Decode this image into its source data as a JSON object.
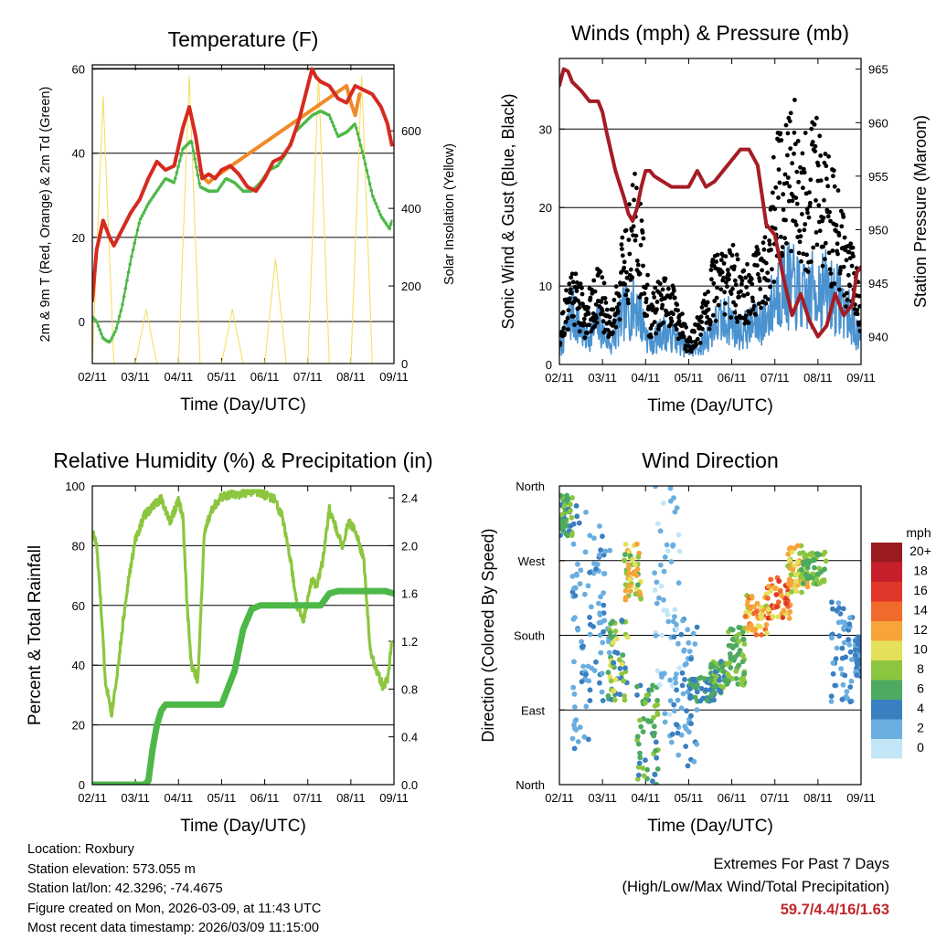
{
  "colors": {
    "temp_red": "#d62a20",
    "temp_orange": "#f08a28",
    "dewpoint_green": "#4db848",
    "insolation_yellow": "#f5dc5a",
    "pressure_maroon": "#a51c24",
    "wind_blue": "#4a92d0",
    "gust_black": "#000000",
    "rh_lightgreen": "#8cc63f",
    "precip_green": "#4db848",
    "extremes_red": "#c1272d"
  },
  "chart_data": [
    {
      "id": "temperature",
      "type": "line",
      "title": "Temperature (F)",
      "xlabel": "Time (Day/UTC)",
      "ylabel": "2m & 9m T (Red, Orange) & 2m Td (Green)",
      "y2label": "Solar Insolation (Yellow)",
      "x_ticks": [
        "02/11",
        "03/11",
        "04/11",
        "05/11",
        "06/11",
        "07/11",
        "08/11",
        "09/11"
      ],
      "xlim": [
        0,
        7
      ],
      "ylim": [
        -10,
        61
      ],
      "y_ticks": [
        0,
        20,
        40,
        60
      ],
      "y2lim": [
        0,
        770
      ],
      "y2_ticks": [
        0,
        200,
        400,
        600
      ],
      "grid_y": [
        0,
        20,
        40,
        60
      ],
      "series": [
        {
          "name": "2m T",
          "color": "temp_red",
          "x": [
            0,
            0.1,
            0.25,
            0.4,
            0.5,
            0.7,
            0.9,
            1.1,
            1.3,
            1.5,
            1.7,
            1.9,
            2.1,
            2.25,
            2.4,
            2.55,
            2.7,
            2.85,
            3.0,
            3.2,
            3.4,
            3.6,
            3.8,
            4.0,
            4.2,
            4.4,
            4.6,
            4.8,
            5.0,
            5.1,
            5.2,
            5.3,
            5.5,
            5.7,
            5.9,
            6.1,
            6.3,
            6.5,
            6.7,
            6.85,
            6.95
          ],
          "values": [
            5,
            17,
            24,
            20,
            18,
            22,
            26,
            29,
            34,
            38,
            36,
            37,
            46,
            51,
            44,
            34,
            35,
            34,
            36,
            37,
            35,
            32,
            31,
            34,
            38,
            39,
            42,
            48,
            56,
            60,
            58,
            57,
            56,
            53,
            52,
            56,
            55,
            54,
            51,
            47,
            42
          ]
        },
        {
          "name": "9m T",
          "color": "temp_orange",
          "x": [
            2.5,
            2.6,
            2.7,
            2.8,
            5.9,
            6.0,
            6.1,
            6.2
          ],
          "values": [
            36,
            34,
            33,
            34,
            56,
            52,
            49,
            54
          ]
        },
        {
          "name": "2m Td",
          "color": "dewpoint_green",
          "x": [
            0,
            0.1,
            0.25,
            0.4,
            0.55,
            0.7,
            0.9,
            1.1,
            1.3,
            1.5,
            1.7,
            1.9,
            2.1,
            2.3,
            2.5,
            2.7,
            2.9,
            3.1,
            3.3,
            3.5,
            3.7,
            3.9,
            4.1,
            4.3,
            4.5,
            4.7,
            4.9,
            5.1,
            5.3,
            5.5,
            5.7,
            5.9,
            6.1,
            6.3,
            6.5,
            6.7,
            6.9,
            6.95
          ],
          "values": [
            1,
            0,
            -4,
            -5,
            -2,
            4,
            15,
            24,
            28,
            31,
            34,
            33,
            41,
            43,
            32,
            31,
            31,
            34,
            33,
            31,
            31,
            33,
            36,
            37,
            40,
            45,
            47,
            49,
            50,
            49,
            44,
            45,
            47,
            39,
            30,
            25,
            22,
            24
          ]
        },
        {
          "name": "Solar Insolation",
          "color": "insolation_yellow",
          "axis": "right",
          "x": [
            0,
            0.25,
            0.5,
            0.75,
            1.0,
            1.25,
            1.5,
            1.75,
            2.0,
            2.25,
            2.5,
            2.75,
            3.0,
            3.25,
            3.5,
            3.75,
            4.0,
            4.25,
            4.5,
            4.75,
            5.0,
            5.25,
            5.5,
            5.75,
            6.0,
            6.25,
            6.5,
            6.75,
            7.0
          ],
          "values": [
            0,
            690,
            0,
            0,
            0,
            140,
            0,
            0,
            0,
            740,
            0,
            0,
            0,
            140,
            0,
            0,
            0,
            270,
            0,
            0,
            0,
            740,
            0,
            0,
            0,
            740,
            0,
            0,
            0
          ]
        }
      ]
    },
    {
      "id": "winds",
      "type": "line",
      "title": "Winds (mph) & Pressure (mb)",
      "xlabel": "Time (Day/UTC)",
      "ylabel": "Sonic Wind & Gust (Blue, Black)",
      "y2label": "Station Pressure (Maroon)",
      "x_ticks": [
        "02/11",
        "03/11",
        "04/11",
        "05/11",
        "06/11",
        "07/11",
        "08/11",
        "09/11"
      ],
      "xlim": [
        0,
        7
      ],
      "ylim": [
        0,
        39
      ],
      "y_ticks": [
        0,
        10,
        20,
        30
      ],
      "y2lim": [
        937.4,
        966
      ],
      "y2_ticks": [
        940,
        945,
        950,
        955,
        960,
        965
      ],
      "grid_y": [
        10,
        20,
        30
      ],
      "series": [
        {
          "name": "Station Pressure",
          "color": "pressure_maroon",
          "axis": "right",
          "x": [
            0,
            0.1,
            0.2,
            0.3,
            0.5,
            0.7,
            0.9,
            1.0,
            1.1,
            1.3,
            1.5,
            1.6,
            1.7,
            1.8,
            1.9,
            2.0,
            2.1,
            2.2,
            2.4,
            2.6,
            2.8,
            3.0,
            3.2,
            3.4,
            3.6,
            3.8,
            4.0,
            4.2,
            4.4,
            4.6,
            4.8,
            5.0,
            5.2,
            5.4,
            5.6,
            5.8,
            6.0,
            6.2,
            6.4,
            6.6,
            6.8,
            6.9,
            7.0
          ],
          "values": [
            963.5,
            965,
            964.8,
            963.8,
            963,
            962,
            962,
            961,
            959,
            955.5,
            953,
            951.5,
            950.8,
            952,
            954,
            955.5,
            955.5,
            955,
            954.5,
            954,
            954,
            954,
            955.5,
            954,
            954.5,
            955.5,
            956.5,
            957.5,
            957.5,
            956,
            950.5,
            949.5,
            945.5,
            942,
            944,
            941.5,
            940,
            941,
            944,
            942,
            943,
            946,
            946.5
          ]
        },
        {
          "name": "Sonic Wind",
          "color": "wind_blue",
          "x": [
            0,
            0.3,
            0.6,
            0.9,
            1.2,
            1.5,
            1.8,
            2.1,
            2.4,
            2.7,
            3.0,
            3.3,
            3.6,
            3.9,
            4.2,
            4.5,
            4.8,
            5.1,
            5.4,
            5.7,
            6.0,
            6.3,
            6.6,
            6.9,
            7.0
          ],
          "values": [
            2,
            8,
            4,
            6,
            3,
            8,
            9,
            3,
            5,
            4,
            2,
            3,
            6,
            7,
            5,
            6,
            7,
            12,
            12,
            10,
            12,
            11,
            9,
            5,
            3
          ]
        },
        {
          "name": "Gust",
          "color": "gust_black",
          "x": [
            0,
            0.3,
            0.6,
            0.9,
            1.2,
            1.5,
            1.8,
            2.1,
            2.4,
            2.7,
            3.0,
            3.3,
            3.6,
            3.9,
            4.2,
            4.5,
            4.8,
            5.1,
            5.4,
            5.7,
            6.0,
            6.3,
            6.6,
            6.9,
            7.0
          ],
          "values": [
            4,
            12,
            7,
            11,
            6,
            15,
            22,
            7,
            10,
            8,
            3,
            6,
            12,
            14,
            11,
            12,
            15,
            28,
            30,
            25,
            27,
            22,
            16,
            11,
            6
          ]
        }
      ]
    },
    {
      "id": "humidity",
      "type": "line",
      "title": "Relative Humidity (%) & Precipitation (in)",
      "xlabel": "Time (Day/UTC)",
      "ylabel": "Percent & Total Rainfall",
      "x_ticks": [
        "02/11",
        "03/11",
        "04/11",
        "05/11",
        "06/11",
        "07/11",
        "08/11",
        "09/11"
      ],
      "xlim": [
        0,
        7
      ],
      "ylim": [
        0,
        100
      ],
      "y_ticks": [
        0,
        20,
        40,
        60,
        80,
        100
      ],
      "y2lim": [
        0,
        2.5
      ],
      "y2_ticks": [
        "0.0",
        "0.4",
        "0.8",
        "1.2",
        "1.6",
        "2.0",
        "2.4"
      ],
      "grid_y": [
        20,
        40,
        60,
        80
      ],
      "series": [
        {
          "name": "Relative Humidity",
          "color": "rh_lightgreen",
          "x": [
            0,
            0.1,
            0.2,
            0.3,
            0.45,
            0.6,
            0.8,
            1.0,
            1.2,
            1.4,
            1.6,
            1.8,
            2.0,
            2.1,
            2.2,
            2.3,
            2.45,
            2.6,
            2.8,
            3.0,
            3.2,
            3.4,
            3.6,
            3.8,
            4.0,
            4.2,
            4.4,
            4.6,
            4.75,
            4.9,
            5.0,
            5.1,
            5.2,
            5.35,
            5.5,
            5.65,
            5.8,
            5.95,
            6.1,
            6.3,
            6.45,
            6.6,
            6.75,
            6.85,
            6.95
          ],
          "values": [
            85,
            80,
            60,
            35,
            24,
            40,
            65,
            82,
            90,
            93,
            96,
            88,
            95,
            90,
            60,
            40,
            35,
            85,
            93,
            96,
            97,
            97,
            98,
            98,
            97,
            96,
            90,
            75,
            60,
            55,
            62,
            70,
            66,
            75,
            92,
            86,
            80,
            88,
            85,
            75,
            45,
            38,
            33,
            35,
            48
          ]
        },
        {
          "name": "Total Rainfall",
          "color": "precip_green",
          "axis": "right",
          "x": [
            0,
            1.2,
            1.3,
            1.4,
            1.5,
            1.6,
            1.7,
            1.9,
            2.1,
            2.3,
            2.5,
            2.7,
            3.0,
            3.3,
            3.5,
            3.7,
            3.9,
            4.2,
            4.5,
            4.8,
            5.0,
            5.2,
            5.3,
            5.5,
            5.7,
            5.9,
            6.2,
            6.5,
            6.8,
            7.0
          ],
          "values": [
            0.0,
            0.0,
            0.03,
            0.3,
            0.5,
            0.62,
            0.67,
            0.67,
            0.67,
            0.67,
            0.67,
            0.67,
            0.67,
            0.95,
            1.3,
            1.47,
            1.5,
            1.5,
            1.5,
            1.5,
            1.5,
            1.5,
            1.5,
            1.6,
            1.62,
            1.62,
            1.62,
            1.62,
            1.62,
            1.6
          ]
        }
      ]
    },
    {
      "id": "direction",
      "type": "scatter",
      "title": "Wind Direction",
      "xlabel": "Time (Day/UTC)",
      "ylabel": "Direction (Colored By Speed)",
      "x_ticks": [
        "02/11",
        "03/11",
        "04/11",
        "05/11",
        "06/11",
        "07/11",
        "08/11",
        "09/11"
      ],
      "xlim": [
        0,
        7
      ],
      "ylim": [
        0,
        360
      ],
      "y_ticks": [
        "North",
        "East",
        "South",
        "West",
        "North"
      ],
      "grid_y": [
        90,
        180,
        270
      ],
      "legend": {
        "title": "mph",
        "labels": [
          "20+",
          "18",
          "16",
          "14",
          "12",
          "10",
          "8",
          "6",
          "4",
          "2",
          "0"
        ],
        "colors": [
          "#9a1b20",
          "#c8202a",
          "#e0372a",
          "#f06a2c",
          "#f7a43a",
          "#e5e05a",
          "#8cc63f",
          "#4daa60",
          "#3a7fc0",
          "#6aaee0",
          "#c3e6f7"
        ]
      },
      "clusters": [
        {
          "x": [
            0.0,
            0.3
          ],
          "dir": [
            300,
            350
          ],
          "speed": [
            4,
            8
          ]
        },
        {
          "x": [
            0.3,
            0.7
          ],
          "dir": [
            40,
            340
          ],
          "speed": [
            1,
            4
          ]
        },
        {
          "x": [
            0.7,
            1.2
          ],
          "dir": [
            100,
            320
          ],
          "speed": [
            1,
            4
          ]
        },
        {
          "x": [
            1.1,
            1.6
          ],
          "dir": [
            100,
            200
          ],
          "speed": [
            3,
            10
          ]
        },
        {
          "x": [
            1.5,
            1.9
          ],
          "dir": [
            220,
            290
          ],
          "speed": [
            6,
            13
          ]
        },
        {
          "x": [
            1.8,
            2.3
          ],
          "dir": [
            0,
            120
          ],
          "speed": [
            4,
            8
          ]
        },
        {
          "x": [
            2.2,
            2.8
          ],
          "dir": [
            50,
            360
          ],
          "speed": [
            0,
            3
          ]
        },
        {
          "x": [
            2.6,
            3.2
          ],
          "dir": [
            20,
            200
          ],
          "speed": [
            1,
            4
          ]
        },
        {
          "x": [
            3.0,
            3.6
          ],
          "dir": [
            100,
            130
          ],
          "speed": [
            3,
            7
          ]
        },
        {
          "x": [
            3.5,
            3.9
          ],
          "dir": [
            110,
            150
          ],
          "speed": [
            4,
            8
          ]
        },
        {
          "x": [
            3.9,
            4.3
          ],
          "dir": [
            120,
            190
          ],
          "speed": [
            5,
            9
          ]
        },
        {
          "x": [
            4.3,
            4.9
          ],
          "dir": [
            180,
            230
          ],
          "speed": [
            8,
            15
          ]
        },
        {
          "x": [
            4.8,
            5.4
          ],
          "dir": [
            200,
            250
          ],
          "speed": [
            10,
            17
          ]
        },
        {
          "x": [
            5.3,
            5.8
          ],
          "dir": [
            230,
            290
          ],
          "speed": [
            8,
            13
          ]
        },
        {
          "x": [
            5.6,
            6.2
          ],
          "dir": [
            240,
            280
          ],
          "speed": [
            5,
            9
          ]
        },
        {
          "x": [
            6.3,
            6.8
          ],
          "dir": [
            100,
            220
          ],
          "speed": [
            1,
            5
          ]
        },
        {
          "x": [
            6.85,
            7.0
          ],
          "dir": [
            130,
            180
          ],
          "speed": [
            2,
            5
          ]
        }
      ]
    }
  ],
  "info": {
    "location": "Location: Roxbury",
    "elevation": "Station elevation: 573.055 m",
    "latlon": "Station lat/lon: 42.3296; -74.4675",
    "created": "Figure created on Mon, 2026-03-09, at 11:43 UTC",
    "recent": "Most recent data timestamp: 2026/03/09 11:15:00"
  },
  "extremes": {
    "title": "Extremes For Past 7 Days",
    "subtitle": "(High/Low/Max Wind/Total Precipitation)",
    "values": "59.7/4.4/16/1.63"
  }
}
